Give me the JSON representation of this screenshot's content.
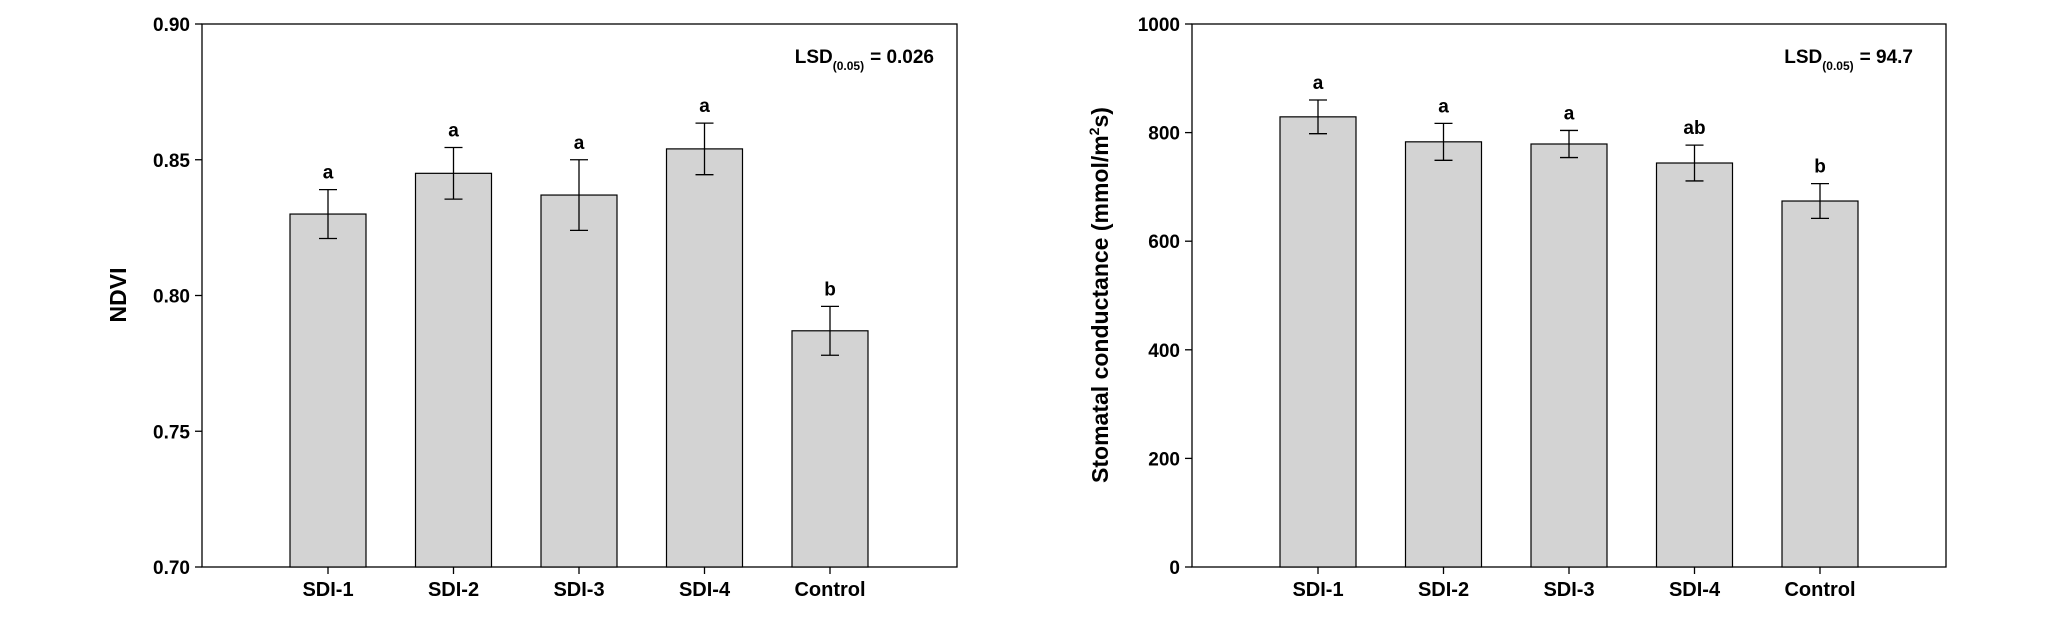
{
  "colors": {
    "bar_fill": "#d3d3d3",
    "bar_stroke": "#000000",
    "axis": "#000000"
  },
  "chart_data": [
    {
      "type": "bar",
      "ylabel": "NDVI",
      "ylim": [
        0.7,
        0.9
      ],
      "yticks": [
        0.7,
        0.75,
        0.8,
        0.85,
        0.9
      ],
      "ytick_labels": [
        "0.70",
        "0.75",
        "0.80",
        "0.85",
        "0.90"
      ],
      "categories": [
        "SDI-1",
        "SDI-2",
        "SDI-3",
        "SDI-4",
        "Control"
      ],
      "values": [
        0.83,
        0.845,
        0.837,
        0.854,
        0.787
      ],
      "errors": [
        0.009,
        0.0095,
        0.013,
        0.0095,
        0.009
      ],
      "significance": [
        "a",
        "a",
        "a",
        "a",
        "b"
      ],
      "lsd": {
        "prefix": "LSD",
        "subscript": "(0.05)",
        "value": "= 0.026"
      }
    },
    {
      "type": "bar",
      "ylabel_parts": {
        "main": "Stomatal conductance (mmol/m",
        "sup": "2",
        "tail": "s)"
      },
      "ylim": [
        0,
        1000
      ],
      "yticks": [
        0,
        200,
        400,
        600,
        800,
        1000
      ],
      "ytick_labels": [
        "0",
        "200",
        "400",
        "600",
        "800",
        "1000"
      ],
      "categories": [
        "SDI-1",
        "SDI-2",
        "SDI-3",
        "SDI-4",
        "Control"
      ],
      "values": [
        829,
        783,
        779,
        744,
        674
      ],
      "errors": [
        31,
        34,
        25,
        33,
        32
      ],
      "significance": [
        "a",
        "a",
        "a",
        "ab",
        "b"
      ],
      "lsd": {
        "prefix": "LSD",
        "subscript": "(0.05)",
        "value": "= 94.7"
      }
    }
  ]
}
